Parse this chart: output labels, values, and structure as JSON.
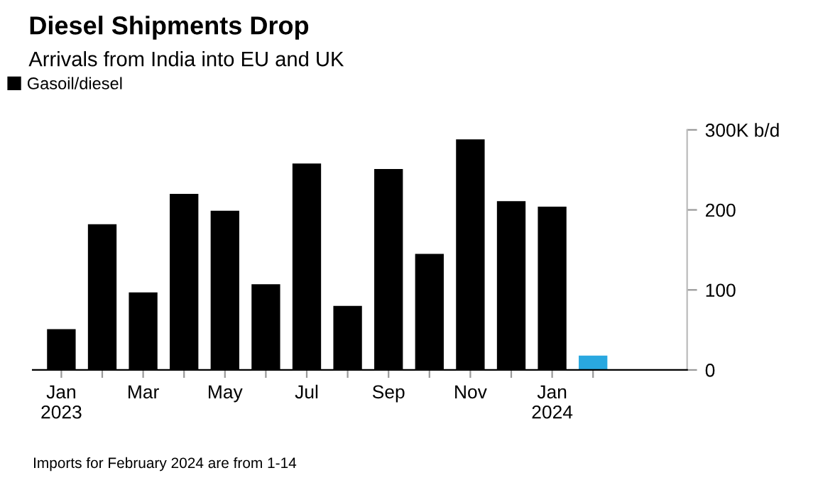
{
  "chart_data": {
    "type": "bar",
    "title": "Diesel Shipments Drop",
    "subtitle": "Arrivals from India into EU and UK",
    "categories": [
      "Jan\n2023",
      null,
      "Mar",
      null,
      "May",
      null,
      "Jul",
      null,
      "Sep",
      null,
      "Nov",
      null,
      "Jan\n2024",
      null
    ],
    "series": [
      {
        "name": "Gasoil/diesel",
        "color": "#000000",
        "colors": [
          "#000000",
          "#000000",
          "#000000",
          "#000000",
          "#000000",
          "#000000",
          "#000000",
          "#000000",
          "#000000",
          "#000000",
          "#000000",
          "#000000",
          "#000000",
          "#29a8e0"
        ],
        "values": [
          51,
          182,
          97,
          220,
          199,
          107,
          258,
          80,
          251,
          145,
          288,
          211,
          204,
          18
        ]
      }
    ],
    "ylim": [
      0,
      300
    ],
    "yticks": [
      0,
      100,
      200,
      {
        "value": 300,
        "label": "300K b/d"
      }
    ],
    "grid": false,
    "legend": "top left",
    "annotations": [
      "Imports for February 2024 are from 1-14"
    ]
  }
}
